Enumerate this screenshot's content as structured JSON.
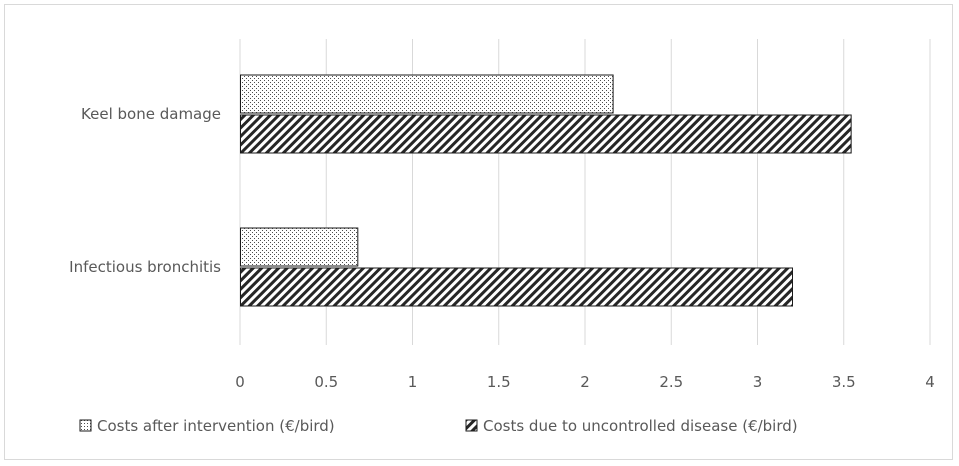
{
  "chart_data": {
    "type": "bar",
    "orientation": "horizontal",
    "categories": [
      "Keel bone damage",
      "Infectious bronchitis"
    ],
    "series": [
      {
        "name": "Costs after intervention (€/bird)",
        "values": [
          2.16,
          0.68
        ],
        "pattern": "dots"
      },
      {
        "name": "Costs due to uncontrolled disease (€/bird)",
        "values": [
          3.54,
          3.2
        ],
        "pattern": "diagonal-hatch"
      }
    ],
    "xlim": [
      0,
      4
    ],
    "xticks": [
      "0",
      "0.5",
      "1",
      "1.5",
      "2",
      "2.5",
      "3",
      "3.5",
      "4"
    ],
    "grid": "vertical",
    "legend_position": "bottom",
    "colors": {
      "grid": "#d9d9d9",
      "text": "#595959",
      "bar_edge": "#1a1a1a"
    }
  }
}
